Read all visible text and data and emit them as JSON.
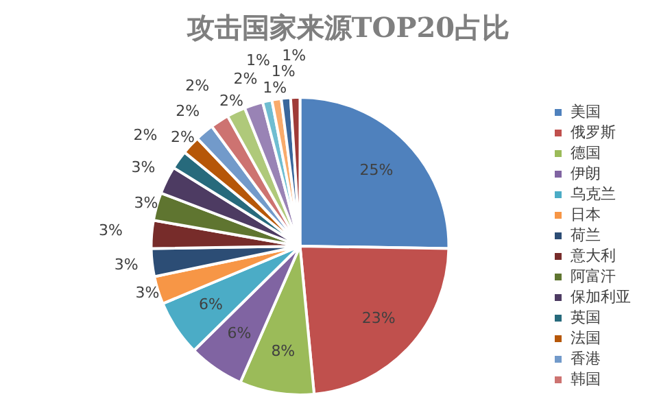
{
  "chart_data": {
    "type": "pie",
    "title": "攻击国家来源TOP20占比",
    "categories": [
      "美国",
      "俄罗斯",
      "德国",
      "伊朗",
      "乌克兰",
      "日本",
      "荷兰",
      "意大利",
      "阿富汗",
      "保加利亚",
      "英国",
      "法国",
      "香港",
      "韩国",
      null,
      null,
      null,
      null,
      null,
      null
    ],
    "values": [
      25,
      23,
      8,
      6,
      6,
      3,
      3,
      3,
      3,
      3,
      2,
      2,
      2,
      2,
      2,
      2,
      1,
      1,
      1,
      1
    ],
    "colors": [
      "#4f81bd",
      "#c0504d",
      "#9bbb59",
      "#8064a2",
      "#4bacc6",
      "#f79646",
      "#2c4d75",
      "#772c2a",
      "#5f7530",
      "#4d3b62",
      "#276a7c",
      "#b65708",
      "#729aca",
      "#cd7371",
      "#afc97a",
      "#9983b5",
      "#6fbdd1",
      "#f9ab6b",
      "#3a679c",
      "#9f3b38"
    ],
    "value_labels": [
      "25%",
      "23%",
      "8%",
      "6%",
      "6%",
      "3%",
      "3%",
      "3%",
      "3%",
      "3%",
      "2%",
      "2%",
      "2%",
      "2%",
      "2%",
      "2%",
      "1%",
      "1%",
      "1%",
      "1%"
    ],
    "legend": "right"
  }
}
